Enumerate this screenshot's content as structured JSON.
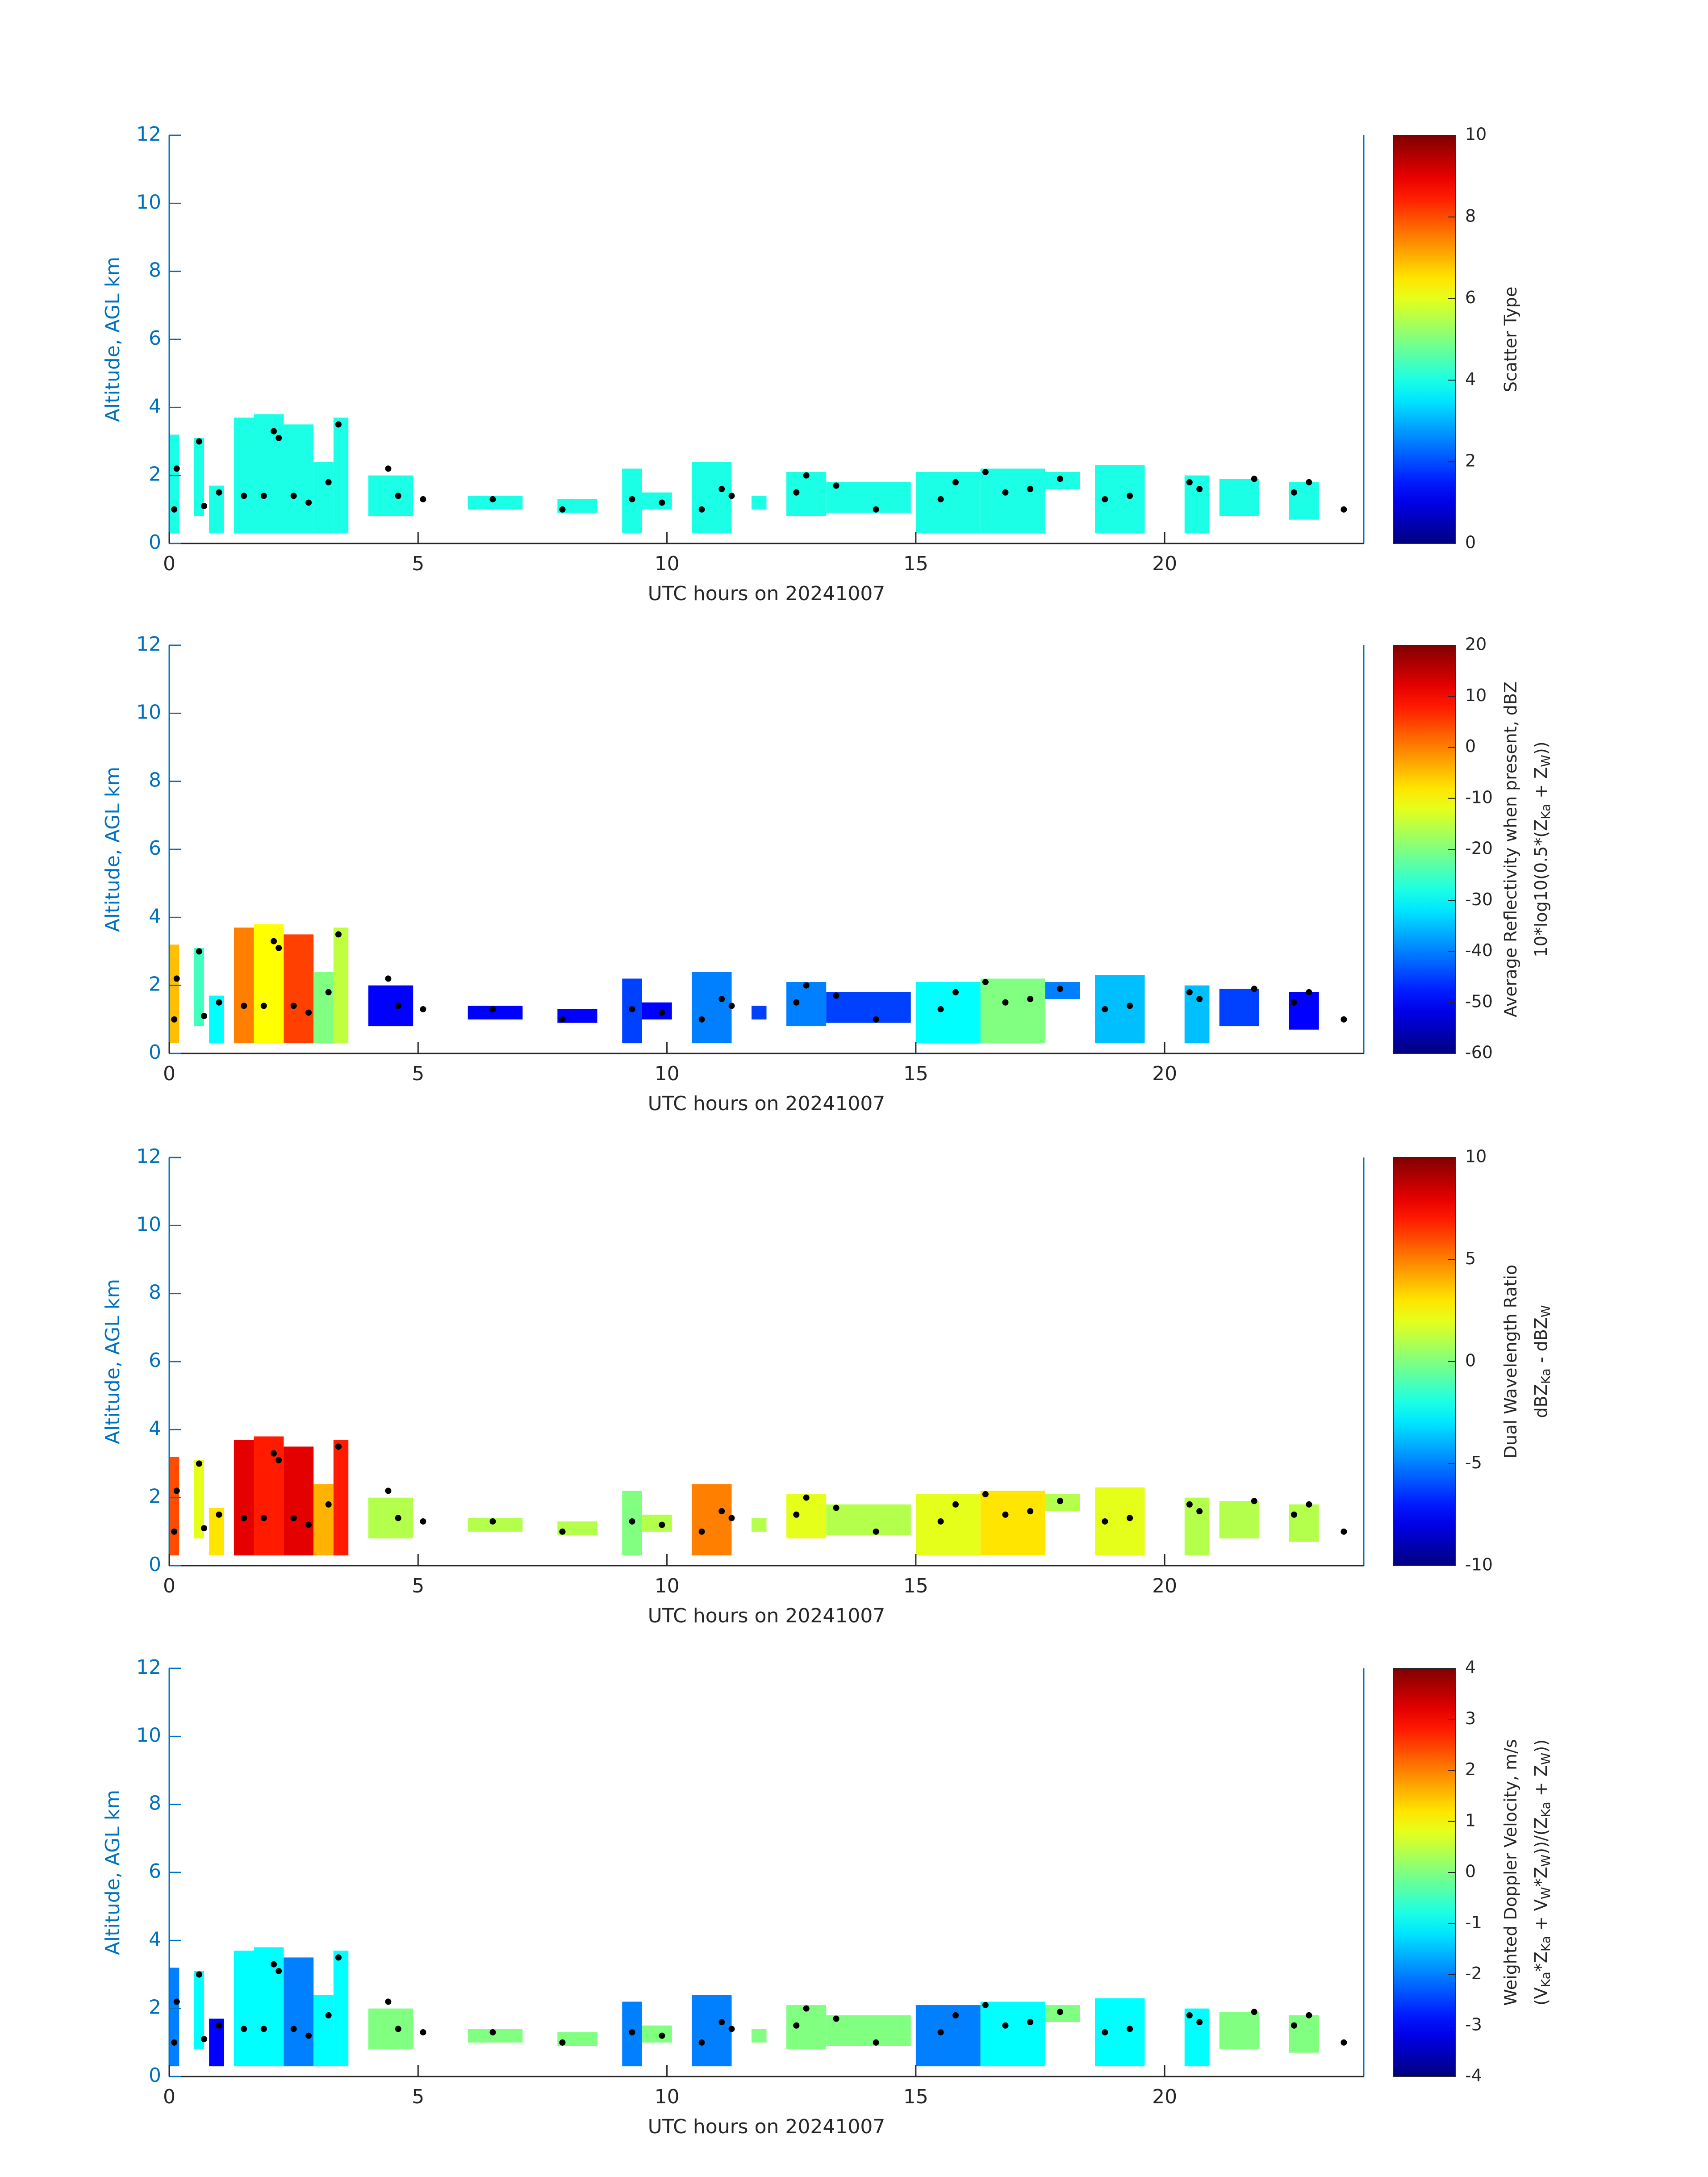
{
  "chart_data": [
    {
      "type": "radar",
      "colormap": "jet",
      "axis_color": "#0072bd",
      "dot_color": "#000000",
      "xlabel": "UTC hours on 20241007",
      "ylabel": "Altitude, AGL km",
      "xlim": [
        0,
        24
      ],
      "xticks": [
        0,
        5,
        10,
        15,
        20
      ],
      "ylim": [
        0,
        12
      ],
      "yticks": [
        0,
        2,
        4,
        6,
        8,
        10,
        12
      ],
      "clim": [
        0,
        10
      ],
      "cticks": [
        0,
        2,
        4,
        6,
        8,
        10
      ],
      "colorbar_label": [
        [
          "Scatter Type"
        ]
      ],
      "echo_x0": [
        0.0,
        0.5,
        0.8,
        1.3,
        1.7,
        2.3,
        2.9,
        3.3,
        4.0,
        6.0,
        7.8,
        9.1,
        9.5,
        10.5,
        11.7,
        12.4,
        13.2,
        15.0,
        16.3,
        17.6,
        18.6,
        20.4,
        21.1,
        22.5
      ],
      "echo_x1": [
        0.2,
        0.7,
        1.1,
        1.7,
        2.3,
        2.9,
        3.3,
        3.6,
        4.9,
        7.1,
        8.6,
        9.5,
        10.1,
        11.3,
        12.0,
        13.2,
        14.9,
        16.3,
        17.6,
        18.3,
        19.6,
        20.9,
        21.9,
        23.1
      ],
      "echo_bottom": [
        0.3,
        0.8,
        0.3,
        0.3,
        0.3,
        0.3,
        0.3,
        0.3,
        0.8,
        1.0,
        0.9,
        0.3,
        1.0,
        0.3,
        1.0,
        0.8,
        0.9,
        0.3,
        0.3,
        1.6,
        0.3,
        0.3,
        0.8,
        0.7
      ],
      "echo_top": [
        3.2,
        3.1,
        1.7,
        3.7,
        3.8,
        3.5,
        2.4,
        3.7,
        2.0,
        1.4,
        1.3,
        2.2,
        1.5,
        2.4,
        1.4,
        2.1,
        1.8,
        2.1,
        2.2,
        2.1,
        2.3,
        2.0,
        1.9,
        1.8
      ],
      "echo_values": [
        4,
        4,
        4,
        4,
        4,
        4,
        4,
        4,
        4,
        4,
        4,
        4,
        4,
        4,
        4,
        4,
        4,
        4,
        4,
        4,
        4,
        4,
        4,
        4
      ],
      "dots_x": [
        0.1,
        0.15,
        0.6,
        0.7,
        1.0,
        1.5,
        1.9,
        2.1,
        2.2,
        2.5,
        2.8,
        3.2,
        3.4,
        4.4,
        4.6,
        5.1,
        6.5,
        7.9,
        9.3,
        9.9,
        10.7,
        11.1,
        11.3,
        12.6,
        12.8,
        13.4,
        14.2,
        15.5,
        15.8,
        16.4,
        16.8,
        17.3,
        17.9,
        18.8,
        19.3,
        20.5,
        20.7,
        21.8,
        22.6,
        22.9,
        23.6
      ],
      "dots_y": [
        1.0,
        2.2,
        3.0,
        1.1,
        1.5,
        1.4,
        1.4,
        3.3,
        3.1,
        1.4,
        1.2,
        1.8,
        3.5,
        2.2,
        1.4,
        1.3,
        1.3,
        1.0,
        1.3,
        1.2,
        1.0,
        1.6,
        1.4,
        1.5,
        2.0,
        1.7,
        1.0,
        1.3,
        1.8,
        2.1,
        1.5,
        1.6,
        1.9,
        1.3,
        1.4,
        1.8,
        1.6,
        1.9,
        1.5,
        1.8,
        1.0
      ]
    },
    {
      "type": "radar",
      "colormap": "jet",
      "axis_color": "#0072bd",
      "dot_color": "#000000",
      "xlabel": "UTC hours on 20241007",
      "ylabel": "Altitude, AGL km",
      "xlim": [
        0,
        24
      ],
      "xticks": [
        0,
        5,
        10,
        15,
        20
      ],
      "ylim": [
        0,
        12
      ],
      "yticks": [
        0,
        2,
        4,
        6,
        8,
        10,
        12
      ],
      "clim": [
        -60,
        20
      ],
      "cticks": [
        -60,
        -50,
        -40,
        -30,
        -20,
        -10,
        0,
        10,
        20
      ],
      "colorbar_label": [
        [
          "Average Reflectivity when present, dBZ"
        ],
        [
          "10*log10(0.5*(Z",
          "Ka",
          " + Z",
          "W",
          "))"
        ]
      ],
      "echo_x0": [
        0.0,
        0.5,
        0.8,
        1.3,
        1.7,
        2.3,
        2.9,
        3.3,
        4.0,
        6.0,
        7.8,
        9.1,
        9.5,
        10.5,
        11.7,
        12.4,
        13.2,
        15.0,
        16.3,
        17.6,
        18.6,
        20.4,
        21.1,
        22.5
      ],
      "echo_x1": [
        0.2,
        0.7,
        1.1,
        1.7,
        2.3,
        2.9,
        3.3,
        3.6,
        4.9,
        7.1,
        8.6,
        9.5,
        10.1,
        11.3,
        12.0,
        13.2,
        14.9,
        16.3,
        17.6,
        18.3,
        19.6,
        20.9,
        21.9,
        23.1
      ],
      "echo_bottom": [
        0.3,
        0.8,
        0.3,
        0.3,
        0.3,
        0.3,
        0.3,
        0.3,
        0.8,
        1.0,
        0.9,
        0.3,
        1.0,
        0.3,
        1.0,
        0.8,
        0.9,
        0.3,
        0.3,
        1.6,
        0.3,
        0.3,
        0.8,
        0.7
      ],
      "echo_top": [
        3.2,
        3.1,
        1.7,
        3.7,
        3.8,
        3.5,
        2.4,
        3.7,
        2.0,
        1.4,
        1.3,
        2.2,
        1.5,
        2.4,
        1.4,
        2.1,
        1.8,
        2.1,
        2.2,
        2.1,
        2.3,
        2.0,
        1.9,
        1.8
      ],
      "echo_values": [
        -5,
        -25,
        -30,
        0,
        -10,
        5,
        -20,
        -15,
        -50,
        -50,
        -50,
        -45,
        -50,
        -40,
        -45,
        -40,
        -45,
        -30,
        -20,
        -40,
        -35,
        -35,
        -45,
        -50
      ],
      "dots_x": [
        0.1,
        0.15,
        0.6,
        0.7,
        1.0,
        1.5,
        1.9,
        2.1,
        2.2,
        2.5,
        2.8,
        3.2,
        3.4,
        4.4,
        4.6,
        5.1,
        6.5,
        7.9,
        9.3,
        9.9,
        10.7,
        11.1,
        11.3,
        12.6,
        12.8,
        13.4,
        14.2,
        15.5,
        15.8,
        16.4,
        16.8,
        17.3,
        17.9,
        18.8,
        19.3,
        20.5,
        20.7,
        21.8,
        22.6,
        22.9,
        23.6
      ],
      "dots_y": [
        1.0,
        2.2,
        3.0,
        1.1,
        1.5,
        1.4,
        1.4,
        3.3,
        3.1,
        1.4,
        1.2,
        1.8,
        3.5,
        2.2,
        1.4,
        1.3,
        1.3,
        1.0,
        1.3,
        1.2,
        1.0,
        1.6,
        1.4,
        1.5,
        2.0,
        1.7,
        1.0,
        1.3,
        1.8,
        2.1,
        1.5,
        1.6,
        1.9,
        1.3,
        1.4,
        1.8,
        1.6,
        1.9,
        1.5,
        1.8,
        1.0
      ]
    },
    {
      "type": "radar",
      "colormap": "jet",
      "axis_color": "#0072bd",
      "dot_color": "#000000",
      "xlabel": "UTC hours on 20241007",
      "ylabel": "Altitude, AGL km",
      "xlim": [
        0,
        24
      ],
      "xticks": [
        0,
        5,
        10,
        15,
        20
      ],
      "ylim": [
        0,
        12
      ],
      "yticks": [
        0,
        2,
        4,
        6,
        8,
        10,
        12
      ],
      "clim": [
        -10,
        10
      ],
      "cticks": [
        -10,
        -5,
        0,
        5,
        10
      ],
      "colorbar_label": [
        [
          "Dual Wavelength Ratio"
        ],
        [
          "dBZ",
          "Ka",
          " - dBZ",
          "W"
        ]
      ],
      "echo_x0": [
        0.0,
        0.5,
        0.8,
        1.3,
        1.7,
        2.3,
        2.9,
        3.3,
        4.0,
        6.0,
        7.8,
        9.1,
        9.5,
        10.5,
        11.7,
        12.4,
        13.2,
        15.0,
        16.3,
        17.6,
        18.6,
        20.4,
        21.1,
        22.5
      ],
      "echo_x1": [
        0.2,
        0.7,
        1.1,
        1.7,
        2.3,
        2.9,
        3.3,
        3.6,
        4.9,
        7.1,
        8.6,
        9.5,
        10.1,
        11.3,
        12.0,
        13.2,
        14.9,
        16.3,
        17.6,
        18.3,
        19.6,
        20.9,
        21.9,
        23.1
      ],
      "echo_bottom": [
        0.3,
        0.8,
        0.3,
        0.3,
        0.3,
        0.3,
        0.3,
        0.3,
        0.8,
        1.0,
        0.9,
        0.3,
        1.0,
        0.3,
        1.0,
        0.8,
        0.9,
        0.3,
        0.3,
        1.6,
        0.3,
        0.3,
        0.8,
        0.7
      ],
      "echo_top": [
        3.2,
        3.1,
        1.7,
        3.7,
        3.8,
        3.5,
        2.4,
        3.7,
        2.0,
        1.4,
        1.3,
        2.2,
        1.5,
        2.4,
        1.4,
        2.1,
        1.8,
        2.1,
        2.2,
        2.1,
        2.3,
        2.0,
        1.9,
        1.8
      ],
      "echo_values": [
        6,
        2,
        3,
        8,
        7,
        8,
        4,
        7,
        1,
        1,
        1,
        0,
        1,
        5,
        1,
        2,
        1,
        2,
        3,
        1,
        2,
        1,
        1,
        1
      ],
      "dots_x": [
        0.1,
        0.15,
        0.6,
        0.7,
        1.0,
        1.5,
        1.9,
        2.1,
        2.2,
        2.5,
        2.8,
        3.2,
        3.4,
        4.4,
        4.6,
        5.1,
        6.5,
        7.9,
        9.3,
        9.9,
        10.7,
        11.1,
        11.3,
        12.6,
        12.8,
        13.4,
        14.2,
        15.5,
        15.8,
        16.4,
        16.8,
        17.3,
        17.9,
        18.8,
        19.3,
        20.5,
        20.7,
        21.8,
        22.6,
        22.9,
        23.6
      ],
      "dots_y": [
        1.0,
        2.2,
        3.0,
        1.1,
        1.5,
        1.4,
        1.4,
        3.3,
        3.1,
        1.4,
        1.2,
        1.8,
        3.5,
        2.2,
        1.4,
        1.3,
        1.3,
        1.0,
        1.3,
        1.2,
        1.0,
        1.6,
        1.4,
        1.5,
        2.0,
        1.7,
        1.0,
        1.3,
        1.8,
        2.1,
        1.5,
        1.6,
        1.9,
        1.3,
        1.4,
        1.8,
        1.6,
        1.9,
        1.5,
        1.8,
        1.0
      ]
    },
    {
      "type": "radar",
      "colormap": "jet",
      "axis_color": "#0072bd",
      "dot_color": "#000000",
      "xlabel": "UTC hours on 20241007",
      "ylabel": "Altitude, AGL km",
      "xlim": [
        0,
        24
      ],
      "xticks": [
        0,
        5,
        10,
        15,
        20
      ],
      "ylim": [
        0,
        12
      ],
      "yticks": [
        0,
        2,
        4,
        6,
        8,
        10,
        12
      ],
      "clim": [
        -4,
        4
      ],
      "cticks": [
        -4,
        -3,
        -2,
        -1,
        0,
        1,
        2,
        3,
        4
      ],
      "colorbar_label": [
        [
          "Weighted Doppler Velocity, m/s"
        ],
        [
          "(V",
          "Ka",
          "*Z",
          "Ka",
          " + V",
          "W",
          "*Z",
          "W",
          "))/(Z",
          "Ka",
          " + Z",
          "W",
          "))"
        ]
      ],
      "echo_x0": [
        0.0,
        0.5,
        0.8,
        1.3,
        1.7,
        2.3,
        2.9,
        3.3,
        4.0,
        6.0,
        7.8,
        9.1,
        9.5,
        10.5,
        11.7,
        12.4,
        13.2,
        15.0,
        16.3,
        17.6,
        18.6,
        20.4,
        21.1,
        22.5
      ],
      "echo_x1": [
        0.2,
        0.7,
        1.1,
        1.7,
        2.3,
        2.9,
        3.3,
        3.6,
        4.9,
        7.1,
        8.6,
        9.5,
        10.1,
        11.3,
        12.0,
        13.2,
        14.9,
        16.3,
        17.6,
        18.3,
        19.6,
        20.9,
        21.9,
        23.1
      ],
      "echo_bottom": [
        0.3,
        0.8,
        0.3,
        0.3,
        0.3,
        0.3,
        0.3,
        0.3,
        0.8,
        1.0,
        0.9,
        0.3,
        1.0,
        0.3,
        1.0,
        0.8,
        0.9,
        0.3,
        0.3,
        1.6,
        0.3,
        0.3,
        0.8,
        0.7
      ],
      "echo_top": [
        3.2,
        3.1,
        1.7,
        3.7,
        3.8,
        3.5,
        2.4,
        3.7,
        2.0,
        1.4,
        1.3,
        2.2,
        1.5,
        2.4,
        1.4,
        2.1,
        1.8,
        2.1,
        2.2,
        2.1,
        2.3,
        2.0,
        1.9,
        1.8
      ],
      "echo_values": [
        -2,
        -1,
        -3,
        -1,
        -1,
        -2,
        -1,
        -1,
        0,
        0,
        0,
        -2,
        0,
        -2,
        0,
        0,
        0,
        -2,
        -1,
        0,
        -1,
        -1,
        0,
        0
      ],
      "dots_x": [
        0.1,
        0.15,
        0.6,
        0.7,
        1.0,
        1.5,
        1.9,
        2.1,
        2.2,
        2.5,
        2.8,
        3.2,
        3.4,
        4.4,
        4.6,
        5.1,
        6.5,
        7.9,
        9.3,
        9.9,
        10.7,
        11.1,
        11.3,
        12.6,
        12.8,
        13.4,
        14.2,
        15.5,
        15.8,
        16.4,
        16.8,
        17.3,
        17.9,
        18.8,
        19.3,
        20.5,
        20.7,
        21.8,
        22.6,
        22.9,
        23.6
      ],
      "dots_y": [
        1.0,
        2.2,
        3.0,
        1.1,
        1.5,
        1.4,
        1.4,
        3.3,
        3.1,
        1.4,
        1.2,
        1.8,
        3.5,
        2.2,
        1.4,
        1.3,
        1.3,
        1.0,
        1.3,
        1.2,
        1.0,
        1.6,
        1.4,
        1.5,
        2.0,
        1.7,
        1.0,
        1.3,
        1.8,
        2.1,
        1.5,
        1.6,
        1.9,
        1.3,
        1.4,
        1.8,
        1.6,
        1.9,
        1.5,
        1.8,
        1.0
      ]
    }
  ]
}
